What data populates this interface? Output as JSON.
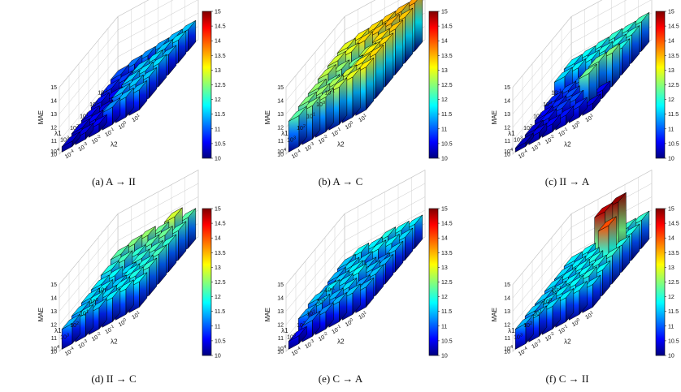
{
  "figure": {
    "panel_captions": [
      "(a) A → II",
      "(b) A → C",
      "(c) II → A",
      "(d) II → C",
      "(e) C → A",
      "(f) C → II"
    ]
  },
  "colors": {
    "colormap": "jet",
    "edge": "#000000",
    "grid": "#c8c8c8"
  },
  "chart_data": [
    {
      "type": "bar3d",
      "title": "(a) A → II",
      "zlabel": "MAE",
      "xlabel": "λ1",
      "ylabel": "λ2",
      "x_ticks": [
        "10-1",
        "100",
        "101",
        "102",
        "103",
        "104"
      ],
      "y_ticks": [
        "10-4",
        "10-3",
        "10-2",
        "10-1",
        "100",
        "101"
      ],
      "z_ticks": [
        "10",
        "11",
        "12",
        "13",
        "14",
        "15"
      ],
      "zlim": [
        10,
        15
      ],
      "colorbar": {
        "ticks": [
          "10",
          "10.5",
          "11",
          "11.5",
          "12",
          "12.5",
          "13",
          "13.5",
          "14",
          "14.5",
          "15"
        ],
        "range": [
          10,
          15
        ]
      },
      "values": [
        [
          11.0,
          11.2,
          11.3,
          11.4,
          11.5,
          11.6
        ],
        [
          10.8,
          10.9,
          11.0,
          11.1,
          11.6,
          11.7
        ],
        [
          10.7,
          10.6,
          10.8,
          11.6,
          11.7,
          11.5
        ],
        [
          10.6,
          10.5,
          10.7,
          11.6,
          11.7,
          11.7
        ],
        [
          10.5,
          10.6,
          10.8,
          11.5,
          11.6,
          11.6
        ],
        [
          10.4,
          10.5,
          10.6,
          11.3,
          11.5,
          11.5
        ]
      ]
    },
    {
      "type": "bar3d",
      "title": "(b) A → C",
      "zlabel": "MAE",
      "xlabel": "λ1",
      "ylabel": "λ2",
      "x_ticks": [
        "10-1",
        "100",
        "101",
        "102",
        "103",
        "104"
      ],
      "y_ticks": [
        "10-4",
        "10-3",
        "10-2",
        "10-1",
        "100",
        "101"
      ],
      "z_ticks": [
        "10",
        "11",
        "12",
        "13",
        "14",
        "15"
      ],
      "zlim": [
        10,
        15
      ],
      "colorbar": {
        "ticks": [
          "10",
          "10.5",
          "11",
          "11.5",
          "12",
          "12.5",
          "13",
          "13.5",
          "14",
          "14.5",
          "15"
        ],
        "range": [
          10,
          15
        ]
      },
      "values": [
        [
          13.0,
          13.2,
          13.3,
          13.4,
          13.5,
          13.6
        ],
        [
          12.9,
          13.0,
          13.3,
          13.4,
          13.5,
          13.4
        ],
        [
          12.8,
          12.6,
          12.4,
          12.8,
          13.3,
          13.4
        ],
        [
          12.6,
          12.4,
          12.3,
          12.7,
          13.2,
          13.3
        ],
        [
          12.5,
          12.6,
          12.7,
          12.9,
          13.2,
          13.3
        ],
        [
          12.3,
          12.5,
          12.6,
          12.8,
          13.0,
          13.2
        ]
      ]
    },
    {
      "type": "bar3d",
      "title": "(c) II → A",
      "zlabel": "MAE",
      "xlabel": "λ1",
      "ylabel": "λ2",
      "x_ticks": [
        "10-1",
        "100",
        "101",
        "102",
        "103",
        "104"
      ],
      "y_ticks": [
        "10-4",
        "10-3",
        "10-2",
        "10-1",
        "100",
        "101"
      ],
      "z_ticks": [
        "10",
        "11",
        "12",
        "13",
        "14",
        "15"
      ],
      "zlim": [
        10,
        15
      ],
      "colorbar": {
        "ticks": [
          "10",
          "10.5",
          "11",
          "11.5",
          "12",
          "12.5",
          "13",
          "13.5",
          "14",
          "14.5",
          "15"
        ],
        "range": [
          10,
          15
        ]
      },
      "values": [
        [
          11.8,
          11.9,
          12.0,
          12.1,
          12.1,
          12.2
        ],
        [
          11.7,
          11.8,
          11.9,
          12.0,
          12.0,
          12.1
        ],
        [
          10.8,
          11.0,
          11.2,
          11.5,
          11.8,
          12.0
        ],
        [
          10.6,
          10.8,
          11.0,
          11.2,
          12.4,
          12.5
        ],
        [
          10.4,
          10.7,
          10.9,
          11.0,
          12.4,
          10.6
        ],
        [
          10.3,
          10.5,
          10.6,
          10.7,
          10.8,
          10.5
        ]
      ]
    },
    {
      "type": "bar3d",
      "title": "(d) II → C",
      "zlabel": "MAE",
      "xlabel": "λ1",
      "ylabel": "λ2",
      "x_ticks": [
        "10-1",
        "100",
        "101",
        "102",
        "103",
        "104"
      ],
      "y_ticks": [
        "10-4",
        "10-3",
        "10-2",
        "10-1",
        "100",
        "101"
      ],
      "z_ticks": [
        "10",
        "11",
        "12",
        "13",
        "14",
        "15"
      ],
      "zlim": [
        10,
        15
      ],
      "colorbar": {
        "ticks": [
          "10",
          "10.5",
          "11",
          "11.5",
          "12",
          "12.5",
          "13",
          "13.5",
          "14",
          "14.5",
          "15"
        ],
        "range": [
          10,
          15
        ]
      },
      "values": [
        [
          12.3,
          12.5,
          12.6,
          12.4,
          12.9,
          12.3
        ],
        [
          12.0,
          12.2,
          12.1,
          12.3,
          12.4,
          12.2
        ],
        [
          11.8,
          11.9,
          11.7,
          12.1,
          12.2,
          12.1
        ],
        [
          11.7,
          11.8,
          11.6,
          11.9,
          12.0,
          12.2
        ],
        [
          11.6,
          11.8,
          11.7,
          11.8,
          12.0,
          12.1
        ],
        [
          11.5,
          11.7,
          11.6,
          11.8,
          11.9,
          11.9
        ]
      ]
    },
    {
      "type": "bar3d",
      "title": "(e) C → A",
      "zlabel": "MAE",
      "xlabel": "λ1",
      "ylabel": "λ2",
      "x_ticks": [
        "10-1",
        "100",
        "101",
        "102",
        "103",
        "104"
      ],
      "y_ticks": [
        "10-4",
        "10-3",
        "10-2",
        "10-1",
        "100",
        "101"
      ],
      "z_ticks": [
        "10",
        "11",
        "12",
        "13",
        "14",
        "15"
      ],
      "zlim": [
        10,
        15
      ],
      "colorbar": {
        "ticks": [
          "10",
          "10.5",
          "11",
          "11.5",
          "12",
          "12.5",
          "13",
          "13.5",
          "14",
          "14.5",
          "15"
        ],
        "range": [
          10,
          15
        ]
      },
      "values": [
        [
          11.6,
          11.9,
          11.8,
          12.0,
          11.9,
          11.8
        ],
        [
          11.5,
          11.7,
          11.6,
          11.9,
          11.8,
          11.7
        ],
        [
          11.4,
          11.6,
          11.8,
          11.5,
          11.3,
          11.6
        ],
        [
          11.6,
          11.8,
          11.7,
          11.9,
          11.6,
          11.5
        ],
        [
          11.4,
          11.6,
          11.5,
          11.7,
          11.4,
          11.6
        ],
        [
          10.6,
          11.2,
          11.3,
          11.5,
          11.6,
          11.5
        ]
      ]
    },
    {
      "type": "bar3d",
      "title": "(f) C → II",
      "zlabel": "MAE",
      "xlabel": "λ1",
      "ylabel": "λ2",
      "x_ticks": [
        "10-1",
        "100",
        "101",
        "102",
        "103",
        "104"
      ],
      "y_ticks": [
        "10-4",
        "10-3",
        "10-2",
        "10-1",
        "100",
        "101"
      ],
      "z_ticks": [
        "10",
        "11",
        "12",
        "13",
        "14",
        "15"
      ],
      "zlim": [
        10,
        15
      ],
      "colorbar": {
        "ticks": [
          "10",
          "10.5",
          "11",
          "11.5",
          "12",
          "12.5",
          "13",
          "13.5",
          "14",
          "14.5",
          "15"
        ],
        "range": [
          10,
          15
        ]
      },
      "values": [
        [
          11.8,
          11.9,
          12.0,
          12.0,
          12.1,
          12.1
        ],
        [
          11.7,
          11.8,
          11.9,
          14.7,
          14.9,
          12.0
        ],
        [
          11.7,
          11.8,
          11.9,
          12.0,
          14.0,
          12.0
        ],
        [
          11.6,
          11.7,
          11.8,
          11.9,
          12.0,
          12.1
        ],
        [
          11.6,
          11.7,
          11.8,
          11.9,
          12.0,
          11.9
        ],
        [
          11.5,
          11.6,
          11.7,
          11.8,
          11.8,
          11.7
        ]
      ]
    }
  ]
}
